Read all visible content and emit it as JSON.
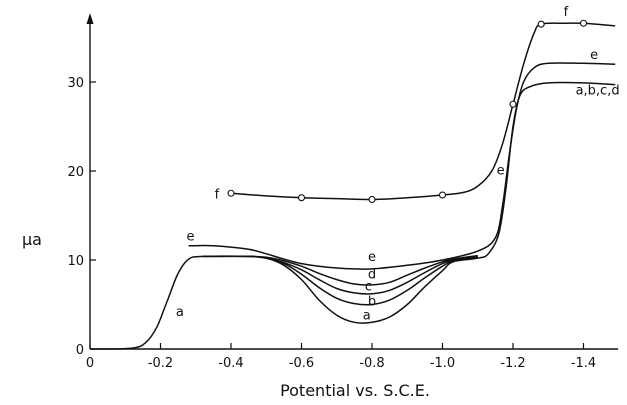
{
  "chart_data": {
    "type": "line",
    "xlabel": "Potential vs. S.C.E.",
    "ylabel": "μa",
    "xlim": [
      0,
      1.5
    ],
    "ylim": [
      0,
      40
    ],
    "x_tick_values": [
      0,
      0.2,
      0.4,
      0.6,
      0.8,
      1.0,
      1.2,
      1.4
    ],
    "x_tick_labels": [
      "0",
      "-0.2",
      "-0.4",
      "-0.6",
      "-0.8",
      "-1.0",
      "-1.2",
      "-1.4"
    ],
    "y_tick_values": [
      0,
      10,
      20,
      30
    ],
    "y_tick_labels": [
      "0",
      "10",
      "20",
      "30"
    ],
    "grid": false,
    "series": [
      {
        "name": "a",
        "points": [
          [
            0,
            0
          ],
          [
            0.12,
            0.1
          ],
          [
            0.16,
            0.8
          ],
          [
            0.19,
            2.5
          ],
          [
            0.22,
            5.5
          ],
          [
            0.25,
            8.5
          ],
          [
            0.28,
            10.1
          ],
          [
            0.32,
            10.4
          ],
          [
            0.45,
            10.4
          ],
          [
            0.5,
            10.2
          ],
          [
            0.55,
            9.4
          ],
          [
            0.6,
            7.8
          ],
          [
            0.65,
            5.5
          ],
          [
            0.7,
            3.8
          ],
          [
            0.75,
            3.0
          ],
          [
            0.8,
            3.0
          ],
          [
            0.85,
            3.6
          ],
          [
            0.9,
            5.0
          ],
          [
            0.95,
            7.0
          ],
          [
            1.0,
            8.8
          ],
          [
            1.03,
            9.8
          ],
          [
            1.1,
            10.2
          ],
          [
            1.13,
            10.7
          ],
          [
            1.16,
            13
          ],
          [
            1.18,
            18
          ],
          [
            1.2,
            25
          ],
          [
            1.22,
            28.5
          ],
          [
            1.25,
            29.5
          ],
          [
            1.3,
            29.9
          ],
          [
            1.4,
            29.9
          ],
          [
            1.49,
            29.7
          ]
        ]
      },
      {
        "name": "b",
        "points": [
          [
            0.32,
            10.4
          ],
          [
            0.45,
            10.4
          ],
          [
            0.5,
            10.2
          ],
          [
            0.55,
            9.6
          ],
          [
            0.6,
            8.4
          ],
          [
            0.65,
            6.9
          ],
          [
            0.7,
            5.7
          ],
          [
            0.75,
            5.1
          ],
          [
            0.8,
            5.0
          ],
          [
            0.85,
            5.5
          ],
          [
            0.9,
            6.6
          ],
          [
            0.95,
            8.0
          ],
          [
            1.0,
            9.3
          ],
          [
            1.03,
            9.9
          ],
          [
            1.1,
            10.3
          ]
        ]
      },
      {
        "name": "c",
        "points": [
          [
            0.32,
            10.4
          ],
          [
            0.45,
            10.4
          ],
          [
            0.5,
            10.2
          ],
          [
            0.55,
            9.7
          ],
          [
            0.6,
            8.9
          ],
          [
            0.65,
            7.8
          ],
          [
            0.7,
            6.8
          ],
          [
            0.75,
            6.3
          ],
          [
            0.8,
            6.2
          ],
          [
            0.85,
            6.6
          ],
          [
            0.9,
            7.5
          ],
          [
            0.95,
            8.6
          ],
          [
            1.0,
            9.6
          ],
          [
            1.03,
            10.0
          ],
          [
            1.1,
            10.4
          ]
        ]
      },
      {
        "name": "d",
        "points": [
          [
            0.32,
            10.4
          ],
          [
            0.45,
            10.4
          ],
          [
            0.5,
            10.3
          ],
          [
            0.55,
            9.9
          ],
          [
            0.6,
            9.3
          ],
          [
            0.65,
            8.5
          ],
          [
            0.7,
            7.8
          ],
          [
            0.75,
            7.3
          ],
          [
            0.8,
            7.2
          ],
          [
            0.85,
            7.5
          ],
          [
            0.9,
            8.3
          ],
          [
            0.95,
            9.1
          ],
          [
            1.0,
            9.8
          ],
          [
            1.03,
            10.1
          ],
          [
            1.1,
            10.5
          ]
        ]
      },
      {
        "name": "e",
        "points": [
          [
            0.28,
            11.6
          ],
          [
            0.35,
            11.6
          ],
          [
            0.45,
            11.2
          ],
          [
            0.5,
            10.7
          ],
          [
            0.55,
            10.1
          ],
          [
            0.6,
            9.6
          ],
          [
            0.65,
            9.3
          ],
          [
            0.7,
            9.1
          ],
          [
            0.75,
            9.0
          ],
          [
            0.8,
            9.0
          ],
          [
            0.9,
            9.4
          ],
          [
            1.0,
            10.0
          ],
          [
            1.1,
            11.0
          ],
          [
            1.15,
            12.5
          ],
          [
            1.17,
            16
          ],
          [
            1.19,
            22
          ],
          [
            1.21,
            27
          ],
          [
            1.23,
            30
          ],
          [
            1.26,
            31.6
          ],
          [
            1.3,
            32.1
          ],
          [
            1.4,
            32.1
          ],
          [
            1.49,
            32.0
          ]
        ]
      },
      {
        "name": "f",
        "points": [
          [
            0.4,
            17.5
          ],
          [
            0.5,
            17.2
          ],
          [
            0.6,
            17.0
          ],
          [
            0.7,
            16.9
          ],
          [
            0.8,
            16.8
          ],
          [
            0.9,
            17.0
          ],
          [
            1.0,
            17.3
          ],
          [
            1.06,
            17.6
          ],
          [
            1.1,
            18.3
          ],
          [
            1.14,
            20.0
          ],
          [
            1.17,
            23.0
          ],
          [
            1.2,
            27.5
          ],
          [
            1.23,
            32.0
          ],
          [
            1.26,
            35.5
          ],
          [
            1.28,
            36.5
          ],
          [
            1.35,
            36.6
          ],
          [
            1.4,
            36.6
          ],
          [
            1.49,
            36.3
          ]
        ]
      }
    ],
    "markers": {
      "series": "f",
      "points": [
        [
          0.4,
          17.5
        ],
        [
          0.6,
          17.0
        ],
        [
          0.8,
          16.8
        ],
        [
          1.0,
          17.3
        ],
        [
          1.2,
          27.5
        ],
        [
          1.28,
          36.5
        ],
        [
          1.4,
          36.6
        ]
      ]
    },
    "curve_labels": [
      {
        "text": "a",
        "x": 0.255,
        "y": 3.7
      },
      {
        "text": "e",
        "x": 0.285,
        "y": 12.2
      },
      {
        "text": "e",
        "x": 0.8,
        "y": 9.9
      },
      {
        "text": "d",
        "x": 0.8,
        "y": 7.9
      },
      {
        "text": "c",
        "x": 0.79,
        "y": 6.6
      },
      {
        "text": "b",
        "x": 0.8,
        "y": 4.9
      },
      {
        "text": "a",
        "x": 0.785,
        "y": 3.3
      },
      {
        "text": "f",
        "x": 0.36,
        "y": 16.9
      },
      {
        "text": "f",
        "x": 1.35,
        "y": 37.4
      },
      {
        "text": "e",
        "x": 1.43,
        "y": 32.6
      },
      {
        "text": "a,b,c,d",
        "x": 1.44,
        "y": 28.6
      },
      {
        "text": "e",
        "x": 1.165,
        "y": 19.6
      }
    ]
  }
}
